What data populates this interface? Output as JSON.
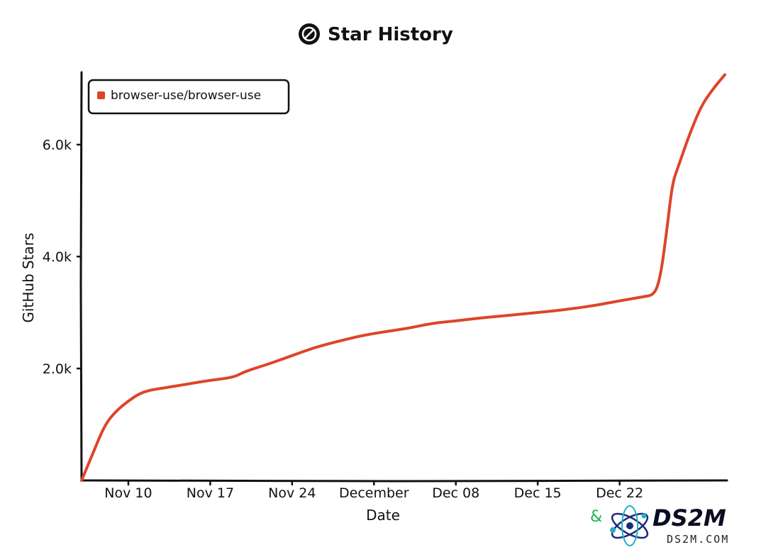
{
  "chart_data": {
    "type": "line",
    "title": "Star History",
    "xlabel": "Date",
    "ylabel": "GitHub Stars",
    "x_tick_labels": [
      "Nov 10",
      "Nov 17",
      "Nov 24",
      "December",
      "Dec 08",
      "Dec 15",
      "Dec 22"
    ],
    "y_tick_labels": [
      "2.0k",
      "4.0k",
      "6.0k"
    ],
    "y_ticks": [
      2000,
      4000,
      6000
    ],
    "ylim": [
      0,
      7280
    ],
    "x_range": [
      "2024-11-06",
      "2024-12-31"
    ],
    "x_ticks": [
      "2024-11-10",
      "2024-11-17",
      "2024-11-24",
      "2024-12-01",
      "2024-12-08",
      "2024-12-15",
      "2024-12-22"
    ],
    "grid": false,
    "legend_position": "top-left",
    "series": [
      {
        "name": "browser-use/browser-use",
        "color": "#dd4528",
        "x": [
          "2024-11-06",
          "2024-11-07",
          "2024-11-08",
          "2024-11-09",
          "2024-11-10",
          "2024-11-11",
          "2024-11-12",
          "2024-11-13",
          "2024-11-15",
          "2024-11-17",
          "2024-11-19",
          "2024-11-20",
          "2024-11-22",
          "2024-11-24",
          "2024-11-26",
          "2024-11-28",
          "2024-11-30",
          "2024-12-02",
          "2024-12-04",
          "2024-12-06",
          "2024-12-08",
          "2024-12-10",
          "2024-12-12",
          "2024-12-14",
          "2024-12-16",
          "2024-12-18",
          "2024-12-20",
          "2024-12-22",
          "2024-12-24",
          "2024-12-25",
          "2024-12-25T12:00",
          "2024-12-26",
          "2024-12-26T12:00",
          "2024-12-27",
          "2024-12-28",
          "2024-12-29",
          "2024-12-30",
          "2024-12-31"
        ],
        "values": [
          0,
          500,
          1000,
          1250,
          1420,
          1560,
          1620,
          1650,
          1720,
          1790,
          1840,
          1950,
          2080,
          2230,
          2380,
          2490,
          2590,
          2660,
          2720,
          2810,
          2850,
          2900,
          2940,
          2980,
          3020,
          3070,
          3130,
          3210,
          3280,
          3320,
          3650,
          4400,
          5300,
          5600,
          6200,
          6700,
          7000,
          7250
        ]
      }
    ]
  },
  "watermark": {
    "brand": "DS2M",
    "sub": "DS2M.COM",
    "logo": "atom-logo-icon",
    "accent": "#19b84a"
  }
}
